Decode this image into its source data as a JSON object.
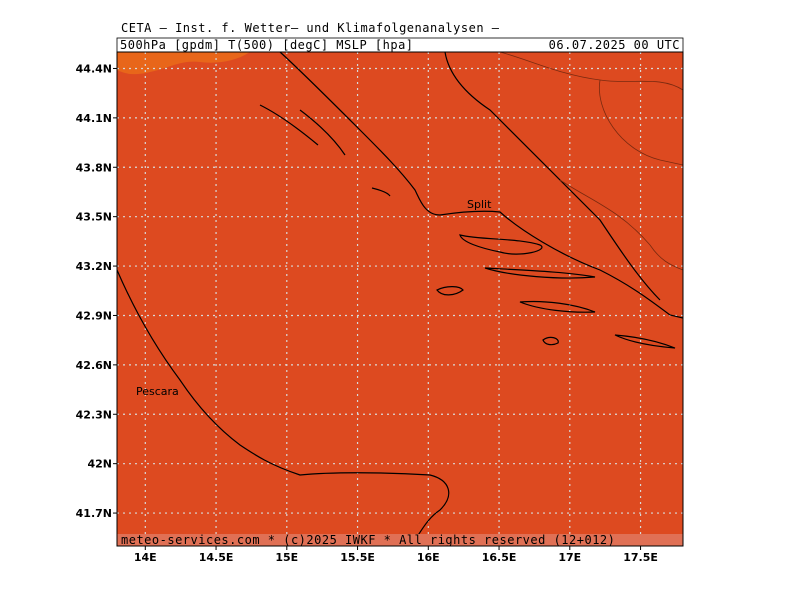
{
  "header": {
    "title": "CETA — Inst. f. Wetter— und Klimafolgenanalysen —",
    "fields": "500hPa [gpdm] T(500) [degC] MSLP [hpa]",
    "date": "06.07.2025 00 UTC"
  },
  "map": {
    "lon_range": [
      13.8,
      17.8
    ],
    "lat_range": [
      41.5,
      44.5
    ],
    "lat_ticks": [
      {
        "value": 44.4,
        "label": "44.4N"
      },
      {
        "value": 44.1,
        "label": "44.1N"
      },
      {
        "value": 43.8,
        "label": "43.8N"
      },
      {
        "value": 43.5,
        "label": "43.5N"
      },
      {
        "value": 43.2,
        "label": "43.2N"
      },
      {
        "value": 42.9,
        "label": "42.9N"
      },
      {
        "value": 42.6,
        "label": "42.6N"
      },
      {
        "value": 42.3,
        "label": "42.3N"
      },
      {
        "value": 42,
        "label": "42N"
      },
      {
        "value": 41.7,
        "label": "41.7N"
      }
    ],
    "lon_ticks": [
      {
        "value": 14,
        "label": "14E"
      },
      {
        "value": 14.5,
        "label": "14.5E"
      },
      {
        "value": 15,
        "label": "15E"
      },
      {
        "value": 15.5,
        "label": "15.5E"
      },
      {
        "value": 16,
        "label": "16E"
      },
      {
        "value": 16.5,
        "label": "16.5E"
      },
      {
        "value": 17,
        "label": "17E"
      },
      {
        "value": 17.5,
        "label": "17.5E"
      }
    ],
    "places": [
      "Split",
      "Pescara"
    ]
  },
  "footer": "meteo-services.com * (c)2025 IWKF * All rights reserved (12+012)"
}
